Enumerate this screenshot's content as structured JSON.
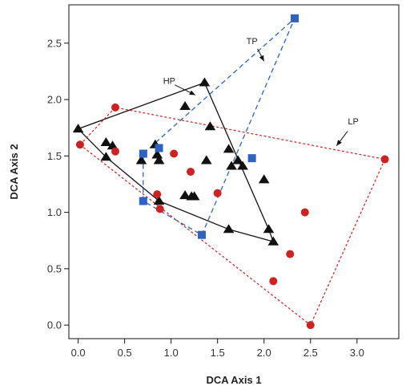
{
  "chart_data": {
    "type": "scatter",
    "xlabel": "DCA Axis 1",
    "ylabel": "DCA Axis 2",
    "xlim": [
      -0.1,
      3.45
    ],
    "ylim": [
      -0.12,
      2.84
    ],
    "xticks": [
      0.0,
      0.5,
      1.0,
      1.5,
      2.0,
      2.5,
      3.0
    ],
    "xtick_labels": [
      "0.0",
      "0.5",
      "1.0",
      "1.5",
      "2.0",
      "2.5",
      "3.0"
    ],
    "yticks": [
      0.0,
      0.5,
      1.0,
      1.5,
      2.0,
      2.5
    ],
    "ytick_labels": [
      "0.0",
      "0.5",
      "1.0",
      "1.5",
      "2.0",
      "2.5"
    ],
    "grid": false,
    "series": [
      {
        "key": "hp",
        "marker": "triangle",
        "color": "#111111",
        "points": [
          [
            0.0,
            1.74
          ],
          [
            0.3,
            1.49
          ],
          [
            0.3,
            1.62
          ],
          [
            0.37,
            1.59
          ],
          [
            0.68,
            1.46
          ],
          [
            0.83,
            1.6
          ],
          [
            0.85,
            1.51
          ],
          [
            0.87,
            1.46
          ],
          [
            0.87,
            1.1
          ],
          [
            1.15,
            1.94
          ],
          [
            1.15,
            1.15
          ],
          [
            1.22,
            1.14
          ],
          [
            1.25,
            1.14
          ],
          [
            1.36,
            2.15
          ],
          [
            1.38,
            1.46
          ],
          [
            1.42,
            1.76
          ],
          [
            1.62,
            1.56
          ],
          [
            1.65,
            1.41
          ],
          [
            1.72,
            1.46
          ],
          [
            1.77,
            1.41
          ],
          [
            1.62,
            0.85
          ],
          [
            2.0,
            1.29
          ],
          [
            2.05,
            0.85
          ],
          [
            2.1,
            0.74
          ]
        ],
        "hull": [
          [
            0.0,
            1.74
          ],
          [
            1.36,
            2.15
          ],
          [
            2.05,
            0.85
          ],
          [
            2.1,
            0.74
          ],
          [
            1.62,
            0.85
          ],
          [
            0.87,
            1.1
          ],
          [
            0.3,
            1.49
          ]
        ]
      },
      {
        "key": "lp",
        "marker": "circle",
        "color": "#cc2222",
        "points": [
          [
            0.02,
            1.6
          ],
          [
            0.4,
            1.93
          ],
          [
            0.4,
            1.54
          ],
          [
            0.85,
            1.16
          ],
          [
            0.88,
            1.03
          ],
          [
            1.03,
            1.52
          ],
          [
            1.21,
            1.36
          ],
          [
            1.5,
            1.17
          ],
          [
            2.1,
            0.39
          ],
          [
            2.28,
            0.63
          ],
          [
            2.44,
            1.0
          ],
          [
            2.5,
            0.0
          ],
          [
            3.3,
            1.47
          ]
        ],
        "hull": [
          [
            0.02,
            1.6
          ],
          [
            0.4,
            1.93
          ],
          [
            3.3,
            1.47
          ],
          [
            2.5,
            0.0
          ]
        ]
      },
      {
        "key": "tp",
        "marker": "square",
        "color": "#2f63bf",
        "points": [
          [
            0.7,
            1.1
          ],
          [
            0.7,
            1.52
          ],
          [
            0.87,
            1.57
          ],
          [
            1.33,
            0.8
          ],
          [
            1.87,
            1.48
          ],
          [
            2.33,
            2.72
          ]
        ],
        "hull": [
          [
            0.7,
            1.1
          ],
          [
            0.7,
            1.52
          ],
          [
            2.33,
            2.72
          ],
          [
            1.33,
            0.8
          ]
        ]
      }
    ],
    "annotations": [
      {
        "text": "HP",
        "series": "hp",
        "label_at": [
          0.98,
          2.14
        ],
        "arrow_from": [
          1.04,
          2.13
        ],
        "arrow_to": [
          1.26,
          2.04
        ]
      },
      {
        "text": "TP",
        "series": "tp",
        "label_at": [
          1.87,
          2.49
        ],
        "arrow_from": [
          1.93,
          2.45
        ],
        "arrow_to": [
          2.0,
          2.34
        ]
      },
      {
        "text": "LP",
        "series": "lp",
        "label_at": [
          2.96,
          1.78
        ],
        "arrow_from": [
          2.9,
          1.72
        ],
        "arrow_to": [
          2.78,
          1.59
        ]
      }
    ]
  }
}
